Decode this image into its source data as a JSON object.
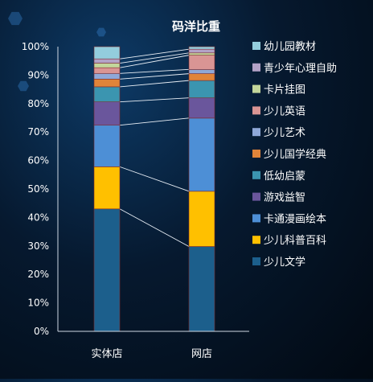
{
  "chart_data": {
    "type": "bar",
    "stacked": true,
    "percent": true,
    "title": "码洋比重",
    "categories": [
      "实体店",
      "网店"
    ],
    "y_ticks": [
      "0%",
      "10%",
      "20%",
      "30%",
      "40%",
      "50%",
      "60%",
      "70%",
      "80%",
      "90%",
      "100%"
    ],
    "ylim": [
      0,
      100
    ],
    "legend_position": "right",
    "series": [
      {
        "name": "少儿文学",
        "color": "#1c5f8c",
        "values": [
          43.0,
          29.8
        ]
      },
      {
        "name": "少儿科普百科",
        "color": "#ffc000",
        "values": [
          14.8,
          19.4
        ]
      },
      {
        "name": "卡通漫画绘本",
        "color": "#4d8fd6",
        "values": [
          14.6,
          25.7
        ]
      },
      {
        "name": "游戏益智",
        "color": "#6a569c",
        "values": [
          8.2,
          7.1
        ]
      },
      {
        "name": "低幼启蒙",
        "color": "#3b95b0",
        "values": [
          5.3,
          6.1
        ]
      },
      {
        "name": "少儿国学经典",
        "color": "#e0843a",
        "values": [
          2.7,
          2.4
        ]
      },
      {
        "name": "少儿艺术",
        "color": "#8fa8d8",
        "values": [
          2.0,
          1.5
        ]
      },
      {
        "name": "少儿英语",
        "color": "#d99594",
        "values": [
          2.0,
          5.0
        ]
      },
      {
        "name": "卡片挂图",
        "color": "#c3d69b",
        "values": [
          1.6,
          0.8
        ]
      },
      {
        "name": "青少年心理自助",
        "color": "#b3a2c7",
        "values": [
          1.5,
          1.3
        ]
      },
      {
        "name": "幼儿园教材",
        "color": "#93cddd",
        "values": [
          4.3,
          0.9
        ]
      }
    ]
  }
}
